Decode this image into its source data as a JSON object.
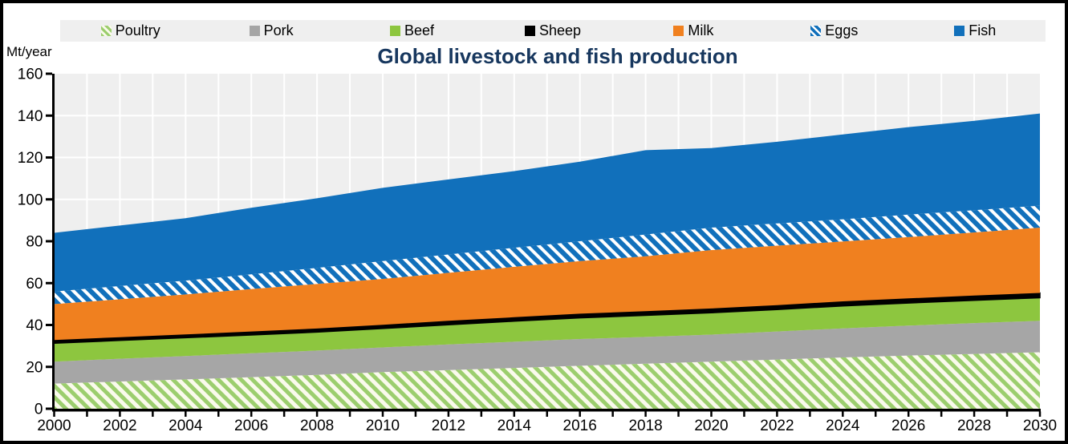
{
  "legend": {
    "items": [
      {
        "label": "Poultry",
        "swatch": "poultry-hatch"
      },
      {
        "label": "Pork",
        "swatch": "gray"
      },
      {
        "label": "Beef",
        "swatch": "green"
      },
      {
        "label": "Sheep",
        "swatch": "black"
      },
      {
        "label": "Milk",
        "swatch": "orange"
      },
      {
        "label": "Eggs",
        "swatch": "eggs-hatch"
      },
      {
        "label": "Fish",
        "swatch": "blue"
      }
    ]
  },
  "colors": {
    "poultry_stripe_green": "#9CCE6E",
    "poultry_base_cream": "#FAFAEC",
    "pork_gray": "#A6A6A6",
    "beef_green": "#8DC63F",
    "sheep_black": "#000000",
    "milk_orange": "#F0801F",
    "eggs_blue": "#1170BB",
    "fish_blue": "#1170BB",
    "plot_background": "#EFEFEF",
    "gridline_white": "#FFFFFF",
    "title_navy": "#17375E",
    "axis_black": "#000000"
  },
  "chart_data": {
    "type": "area",
    "stacked": true,
    "title": "Global livestock and fish production",
    "ylabel": "Mt/year",
    "xlabel": "",
    "legend_position": "top",
    "grid": "white gridlines on light gray background, vertical line every year",
    "xlim": [
      2000,
      2030
    ],
    "ylim": [
      0,
      160
    ],
    "yticks": [
      0,
      20,
      40,
      60,
      80,
      100,
      120,
      140,
      160
    ],
    "xticks": [
      2000,
      2002,
      2004,
      2006,
      2008,
      2010,
      2012,
      2014,
      2016,
      2018,
      2020,
      2022,
      2024,
      2026,
      2028,
      2030
    ],
    "x": [
      2000,
      2002,
      2004,
      2006,
      2008,
      2010,
      2012,
      2014,
      2016,
      2018,
      2020,
      2022,
      2024,
      2026,
      2028,
      2030
    ],
    "patterns": {
      "poultry-hatch": {
        "base": "#FAFAEC",
        "stripe": "#9CCE6E",
        "stripe_width": 5
      },
      "eggs-hatch": {
        "base": "#1170BB",
        "stripe": "#FFFFFF",
        "stripe_width": 4
      }
    },
    "series": [
      {
        "name": "Poultry",
        "color": "#9CCE6E",
        "pattern": "poultry-hatch",
        "values": [
          12.0,
          13.0,
          14.0,
          15.1,
          16.2,
          17.5,
          18.5,
          19.5,
          20.5,
          21.5,
          22.5,
          23.5,
          24.5,
          25.4,
          26.2,
          27.0
        ]
      },
      {
        "name": "Pork",
        "color": "#A6A6A6",
        "values": [
          10.5,
          10.9,
          11.2,
          11.4,
          11.6,
          11.8,
          12.2,
          12.5,
          12.8,
          12.8,
          12.9,
          13.4,
          13.9,
          14.3,
          14.7,
          15.0
        ]
      },
      {
        "name": "Beef",
        "color": "#8DC63F",
        "values": [
          8.8,
          8.7,
          8.7,
          8.7,
          8.8,
          9.0,
          9.4,
          9.8,
          10.1,
          10.3,
          10.4,
          10.5,
          10.7,
          10.8,
          10.9,
          11.0
        ]
      },
      {
        "name": "Sheep",
        "color": "#000000",
        "stroke": "#000000",
        "values": [
          1.5,
          1.6,
          1.6,
          1.7,
          1.7,
          1.8,
          1.9,
          1.9,
          2.0,
          2.0,
          2.1,
          2.1,
          2.2,
          2.2,
          2.3,
          2.3
        ]
      },
      {
        "name": "Milk",
        "color": "#F0801F",
        "values": [
          17.2,
          18.1,
          19.1,
          20.3,
          21.3,
          21.9,
          22.9,
          24.1,
          25.1,
          26.2,
          27.9,
          28.4,
          28.6,
          29.3,
          30.1,
          31.2
        ]
      },
      {
        "name": "Eggs",
        "color": "#1170BB",
        "pattern": "eggs-hatch",
        "values": [
          6.0,
          6.3,
          6.6,
          7.0,
          7.7,
          8.5,
          8.8,
          9.1,
          9.5,
          10.4,
          10.7,
          10.6,
          10.6,
          10.7,
          10.6,
          10.5
        ]
      },
      {
        "name": "Fish",
        "color": "#1170BB",
        "values": [
          28.0,
          28.9,
          29.8,
          31.8,
          33.2,
          35.0,
          35.8,
          36.6,
          38.0,
          40.3,
          38.0,
          39.0,
          40.5,
          41.8,
          42.7,
          44.0
        ]
      }
    ],
    "totals_by_x": [
      84.0,
      87.5,
      91.0,
      96.0,
      100.5,
      105.5,
      109.5,
      113.5,
      118.0,
      123.5,
      124.5,
      127.5,
      131.0,
      134.5,
      137.5,
      141.0
    ]
  }
}
